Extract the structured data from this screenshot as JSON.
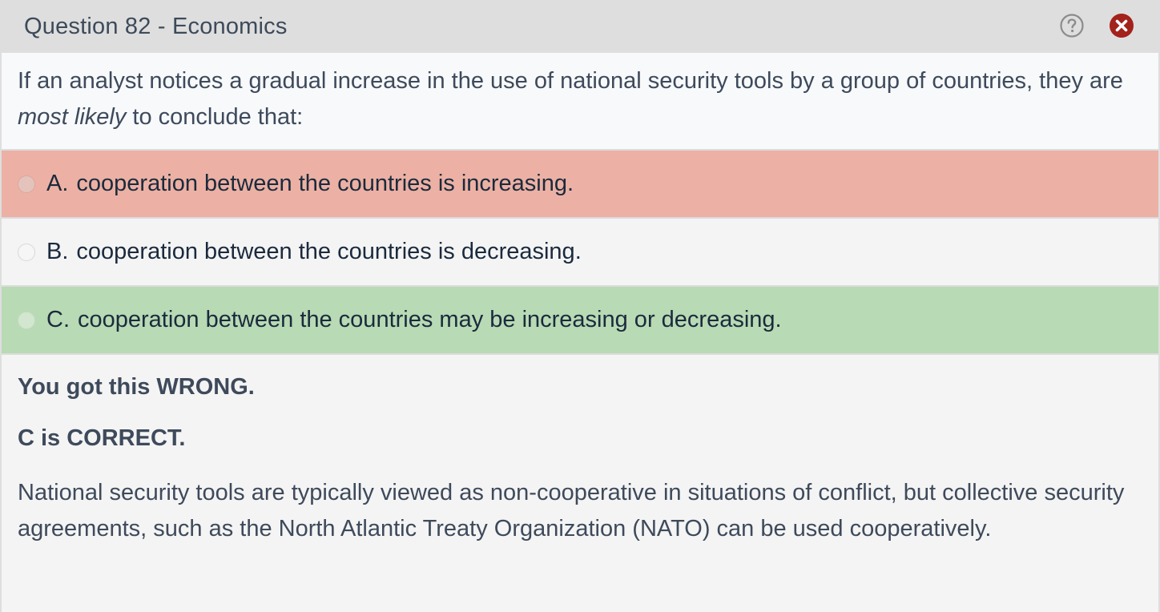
{
  "header": {
    "title": "Question 82 - Economics",
    "help_icon": "question-circle-icon",
    "close_icon": "close-circle-icon",
    "close_color": "#a3221b",
    "help_color": "#8c8c8c"
  },
  "question": {
    "text_before": "If an analyst notices a gradual increase in the use of national security tools by a group of countries, they are ",
    "emphasis": "most likely",
    "text_after": " to conclude that:"
  },
  "options": [
    {
      "letter": "A.",
      "text": "cooperation between the countries is increasing.",
      "state": "wrong"
    },
    {
      "letter": "B.",
      "text": "cooperation between the countries is decreasing.",
      "state": "neutral"
    },
    {
      "letter": "C.",
      "text": "cooperation between the countries may be increasing or decreasing.",
      "state": "correct"
    }
  ],
  "feedback": {
    "result": "You got this WRONG.",
    "correct_answer": "C is CORRECT.",
    "explanation": "National security tools are typically viewed as non-cooperative in situations of conflict, but collective security agreements, such as the North Atlantic Treaty Organization (NATO) can be used cooperatively."
  },
  "colors": {
    "wrong_bg": "#ecb1a4",
    "correct_bg": "#b8dab4",
    "header_bg": "#dedede"
  }
}
